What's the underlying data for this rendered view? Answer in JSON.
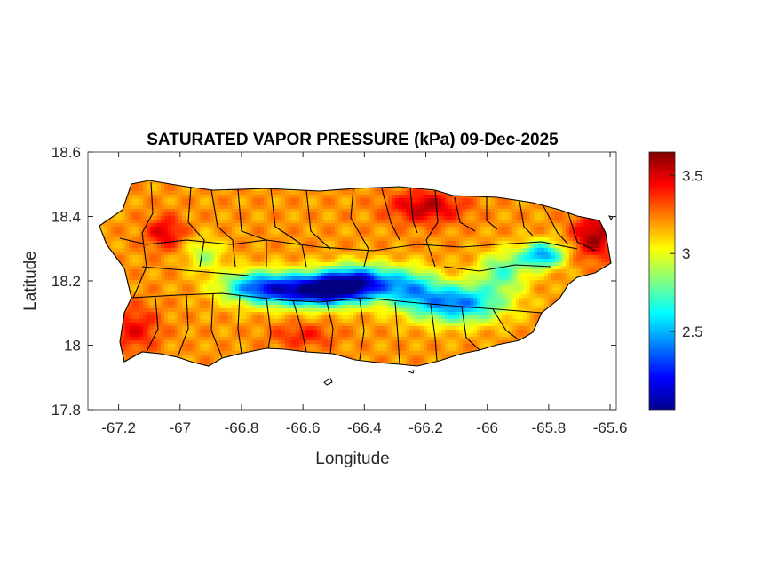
{
  "chart_data": {
    "type": "heatmap",
    "title": "SATURATED VAPOR PRESSURE (kPa) 09-Dec-2025",
    "xlabel": "Longitude",
    "ylabel": "Latitude",
    "xlim": [
      -67.3,
      -65.58
    ],
    "ylim": [
      17.8,
      18.6
    ],
    "xticks": [
      -67.2,
      -67,
      -66.8,
      -66.6,
      -66.4,
      -66.2,
      -66,
      -65.8,
      -65.6
    ],
    "xtick_labels": [
      "-67.2",
      "-67",
      "-66.8",
      "-66.6",
      "-66.4",
      "-66.2",
      "-66",
      "-65.8",
      "-65.6"
    ],
    "yticks": [
      17.8,
      18,
      18.2,
      18.4,
      18.6
    ],
    "ytick_labels": [
      "17.8",
      "18",
      "18.2",
      "18.4",
      "18.6"
    ],
    "colorbar": {
      "range": [
        2.0,
        3.65
      ],
      "ticks": [
        2.5,
        3,
        3.5
      ],
      "tick_labels": [
        "2.5",
        "3",
        "3.5"
      ],
      "colormap": "jet"
    },
    "field": {
      "base": 3.2,
      "features": [
        {
          "lon": -66.55,
          "lat": 18.17,
          "rlon": 0.16,
          "rlat": 0.05,
          "amp": -1.15
        },
        {
          "lon": -66.42,
          "lat": 18.2,
          "rlon": 0.12,
          "rlat": 0.05,
          "amp": -0.8
        },
        {
          "lon": -66.75,
          "lat": 18.18,
          "rlon": 0.12,
          "rlat": 0.05,
          "amp": -0.7
        },
        {
          "lon": -66.1,
          "lat": 18.13,
          "rlon": 0.15,
          "rlat": 0.06,
          "amp": -0.8
        },
        {
          "lon": -66.25,
          "lat": 18.18,
          "rlon": 0.09,
          "rlat": 0.06,
          "amp": -0.5
        },
        {
          "lon": -65.82,
          "lat": 18.28,
          "rlon": 0.07,
          "rlat": 0.04,
          "amp": -0.75
        },
        {
          "lon": -65.95,
          "lat": 18.23,
          "rlon": 0.08,
          "rlat": 0.06,
          "amp": -0.45
        },
        {
          "lon": -66.92,
          "lat": 18.28,
          "rlon": 0.06,
          "rlat": 0.05,
          "amp": -0.3
        },
        {
          "lon": -67.05,
          "lat": 18.35,
          "rlon": 0.06,
          "rlat": 0.05,
          "amp": 0.3
        },
        {
          "lon": -66.2,
          "lat": 18.43,
          "rlon": 0.12,
          "rlat": 0.05,
          "amp": 0.35
        },
        {
          "lon": -65.65,
          "lat": 18.34,
          "rlon": 0.07,
          "rlat": 0.07,
          "amp": 0.4
        },
        {
          "lon": -67.15,
          "lat": 18.05,
          "rlon": 0.08,
          "rlat": 0.07,
          "amp": 0.25
        },
        {
          "lon": -66.6,
          "lat": 18.03,
          "rlon": 0.1,
          "rlat": 0.04,
          "amp": 0.2
        }
      ]
    }
  },
  "colors": {
    "axis": "#262626",
    "background": "#ffffff",
    "boundary": "#000000"
  }
}
